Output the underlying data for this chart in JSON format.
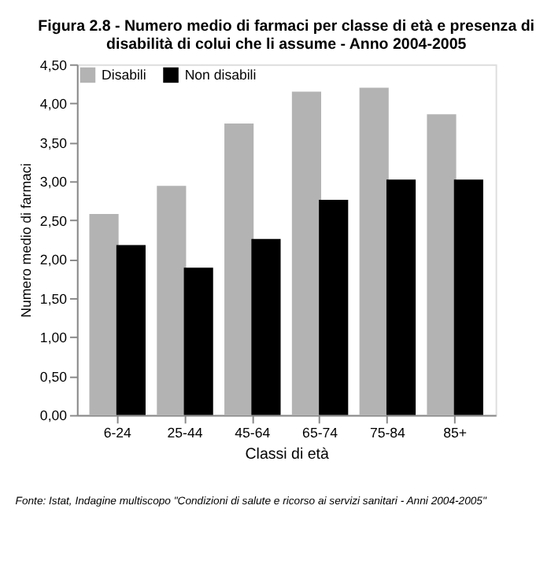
{
  "chart_data": {
    "type": "bar",
    "title": "Figura 2.8 - Numero medio di farmaci per classe di età e presenza di disabilità di colui che li assume - Anno 2004-2005",
    "categories": [
      "6-24",
      "25-44",
      "45-64",
      "65-74",
      "75-84",
      "85+"
    ],
    "series": [
      {
        "name": "Disabili",
        "color": "#b3b3b3",
        "values": [
          2.58,
          2.94,
          3.74,
          4.15,
          4.2,
          3.86
        ]
      },
      {
        "name": "Non disabili",
        "color": "#000000",
        "values": [
          2.18,
          1.89,
          2.26,
          2.76,
          3.02,
          3.02
        ]
      }
    ],
    "xlabel": "Classi di età",
    "ylabel": "Numero medio di farmaci",
    "ylim": [
      0,
      4.5
    ],
    "yticks": [
      {
        "value": 0,
        "label": "0,00"
      },
      {
        "value": 0.5,
        "label": "0,50"
      },
      {
        "value": 1,
        "label": "1,00"
      },
      {
        "value": 1.5,
        "label": "1,50"
      },
      {
        "value": 2,
        "label": "2,00"
      },
      {
        "value": 2.5,
        "label": "2,50"
      },
      {
        "value": 3,
        "label": "3,00"
      },
      {
        "value": 3.5,
        "label": "3,50"
      },
      {
        "value": 4,
        "label": "4,00"
      },
      {
        "value": 4.5,
        "label": "4,50"
      }
    ],
    "grid": false,
    "legend": "top left",
    "annotations": [
      "Fonte: Istat, Indagine multiscopo \"Condizioni di salute e ricorso ai servizi sanitari - Anni 2004-2005\""
    ]
  }
}
